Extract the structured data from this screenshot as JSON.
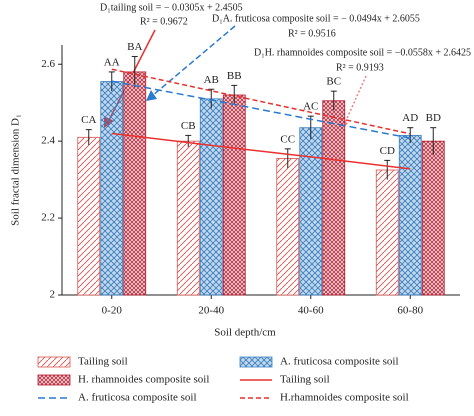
{
  "chart_data": {
    "type": "bar",
    "x_label": "Soil depth/cm",
    "y_label": "Soil fractal dimension D₁",
    "categories": [
      "0-20",
      "20-40",
      "40-60",
      "60-80"
    ],
    "ylim": [
      2.0,
      2.65
    ],
    "yticks": [
      2.0,
      2.2,
      2.4,
      2.6
    ],
    "series": [
      {
        "name": "Tailing soil",
        "color": "#d9534f",
        "hatch": "diagonal",
        "values": [
          2.41,
          2.4,
          2.355,
          2.325
        ],
        "errors": [
          0.02,
          0.015,
          0.025,
          0.025
        ],
        "letters": [
          "CA",
          "CB",
          "CC",
          "CD"
        ]
      },
      {
        "name": "A. fruticosa composite soil",
        "color": "#3a7fc0",
        "hatch": "cross",
        "values": [
          2.555,
          2.51,
          2.435,
          2.415
        ],
        "errors": [
          0.025,
          0.025,
          0.03,
          0.02
        ],
        "letters": [
          "AA",
          "AB",
          "AC",
          "AD"
        ]
      },
      {
        "name": "H. rhamnoides composite soil",
        "color": "#b2182b",
        "hatch": "dense",
        "values": [
          2.58,
          2.52,
          2.505,
          2.4
        ],
        "errors": [
          0.04,
          0.025,
          0.025,
          0.035
        ],
        "letters": [
          "BA",
          "BB",
          "BC",
          "BD"
        ]
      }
    ],
    "trend_lines": [
      {
        "name": "Tailing soil",
        "color": "#e8312f",
        "dash": "none",
        "values": [
          2.42,
          2.389,
          2.359,
          2.328
        ]
      },
      {
        "name": "A. fruticosa composite soil",
        "color": "#2a7ad0",
        "dash": "7 4",
        "values": [
          2.556,
          2.507,
          2.457,
          2.408
        ]
      },
      {
        "name": "H.rhamnoides composite soil",
        "color": "#e8312f",
        "dash": "5 3",
        "values": [
          2.587,
          2.531,
          2.475,
          2.419
        ]
      }
    ],
    "annotations": [
      {
        "equation": "D₁tailing soil = − 0.0305x + 2.4505",
        "r2": "R² = 0.9672"
      },
      {
        "equation": "D₁A. fruticosa composite soil = − 0.0494x + 2.6055",
        "r2": "R² = 0.9516"
      },
      {
        "equation": "D₁H. rhamnoides composite soil = −0.0558x + 2.6425",
        "r2": "R² = 0.9193"
      }
    ]
  }
}
